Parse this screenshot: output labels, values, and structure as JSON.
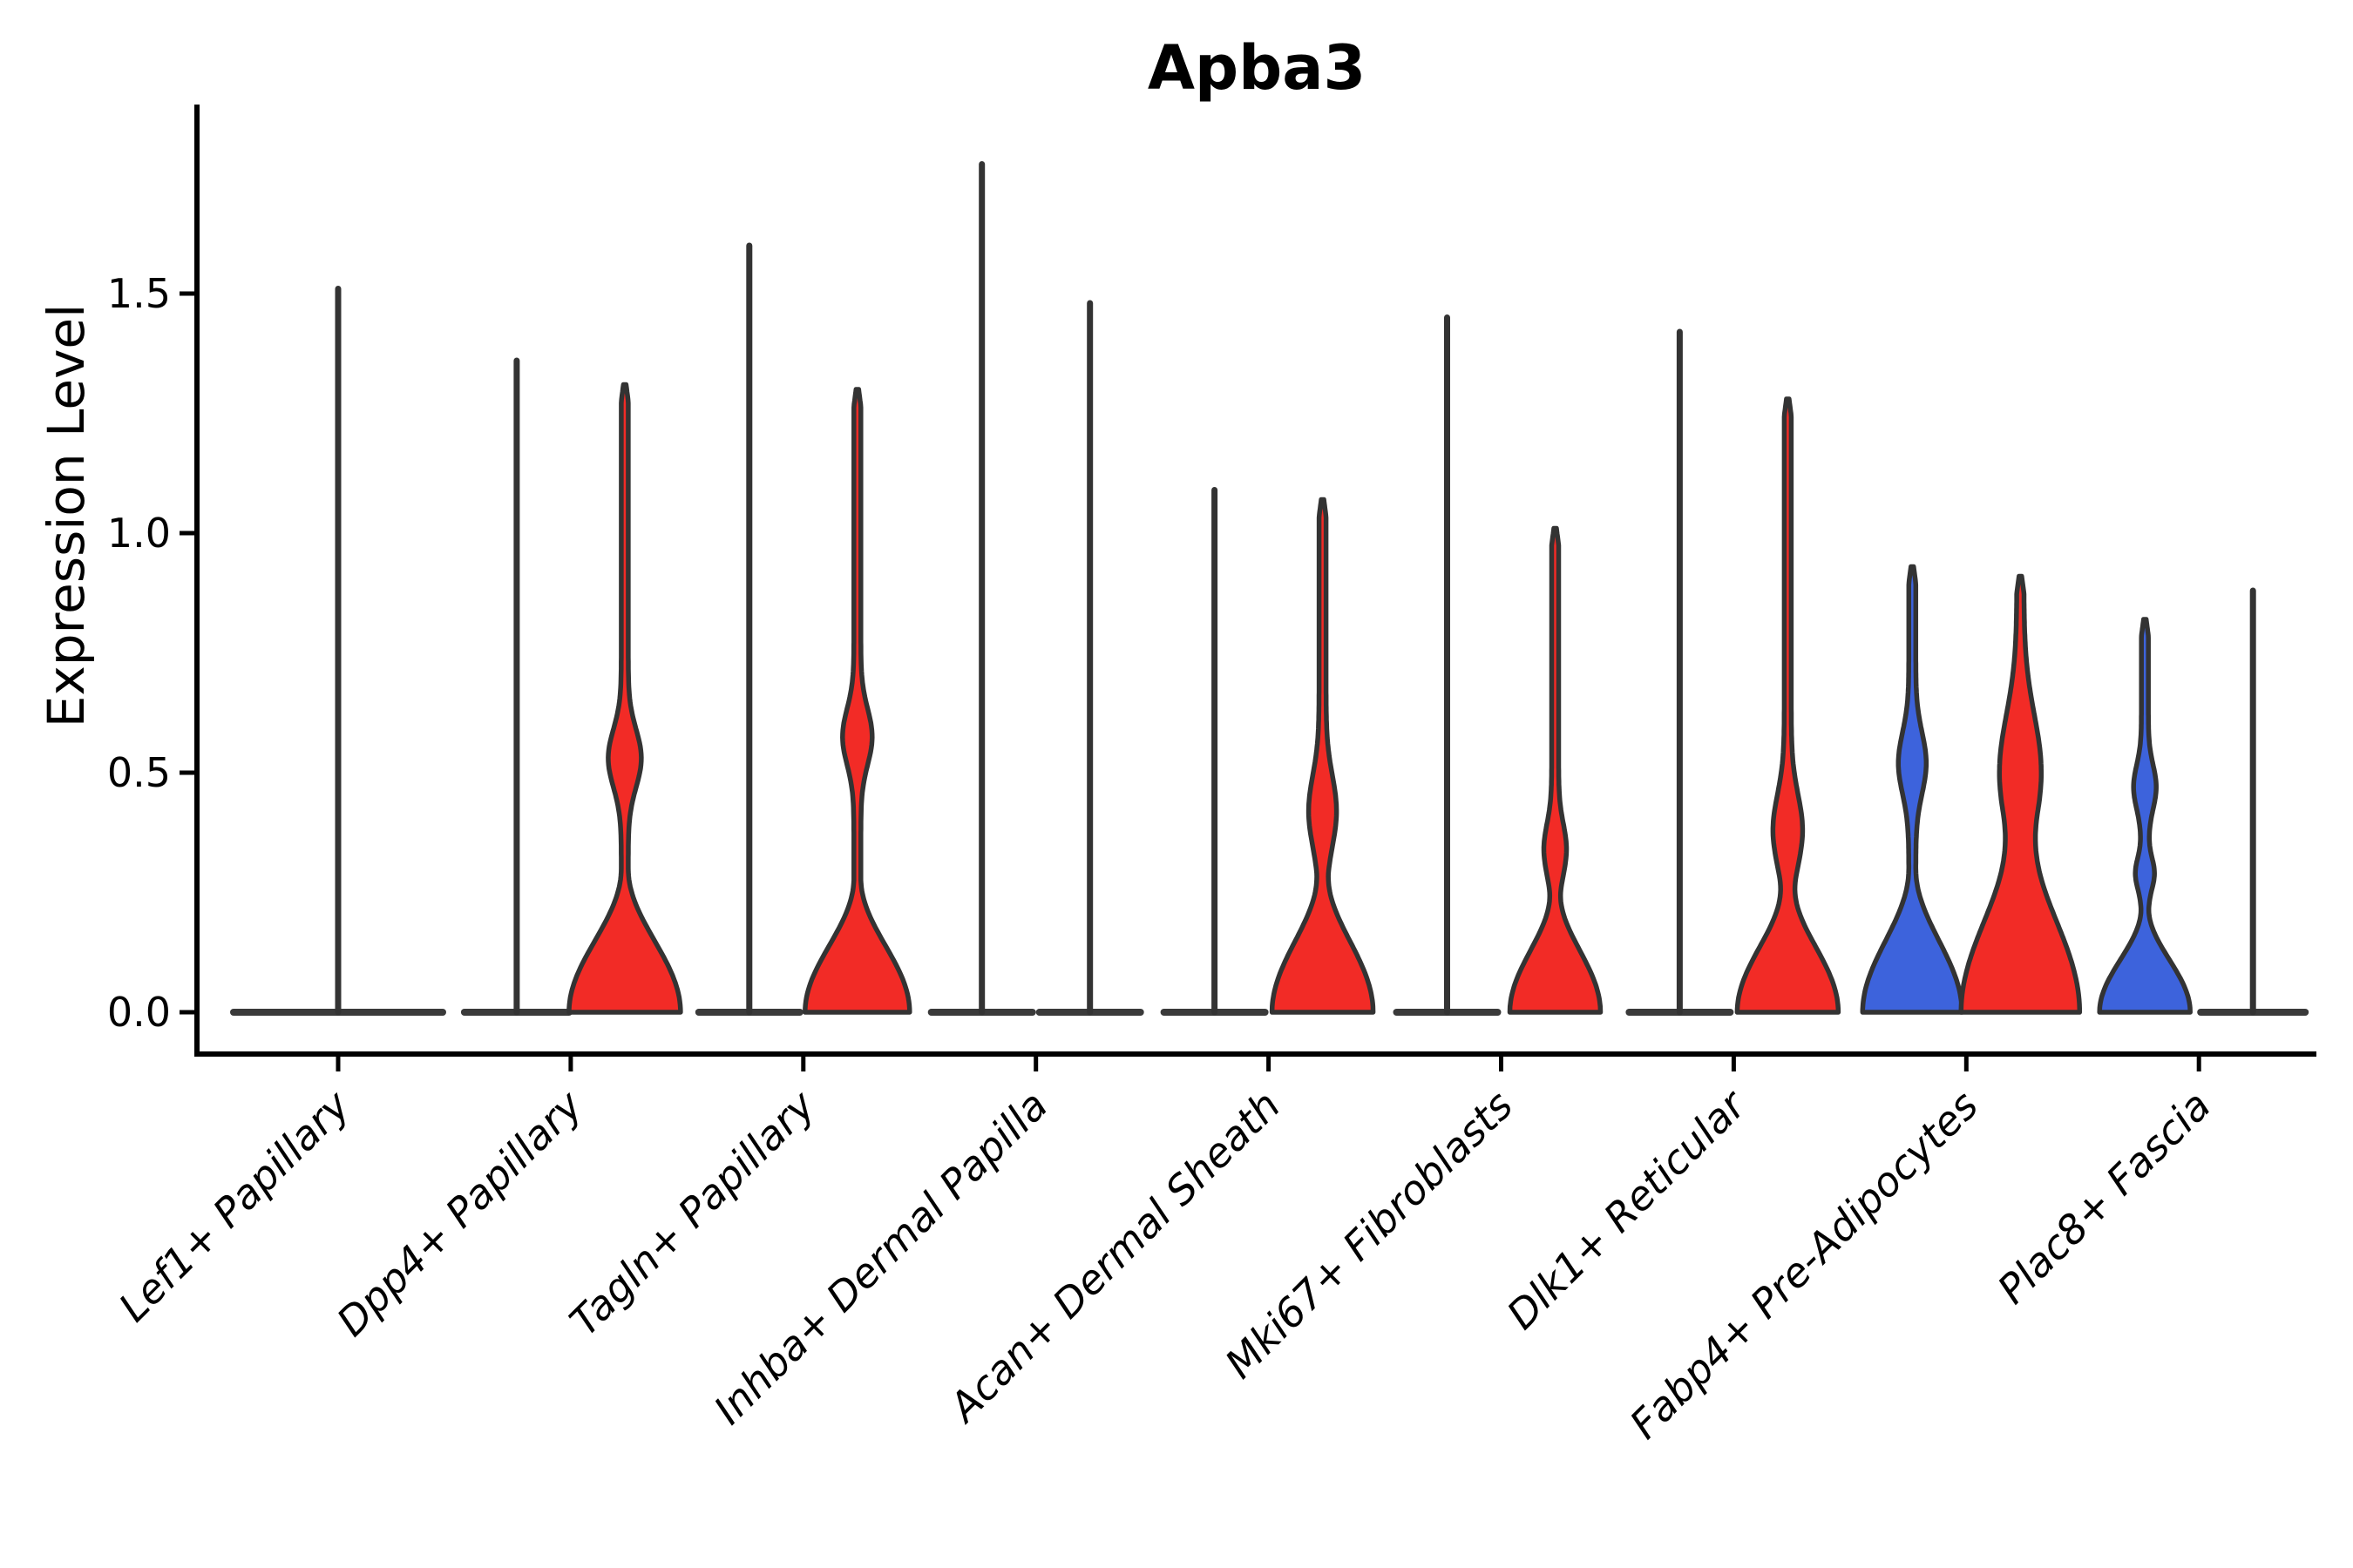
{
  "title": "Apba3",
  "ylabel": "Expression Level",
  "chart_data": {
    "type": "violin",
    "title": "Apba3",
    "xlabel": "",
    "ylabel": "Expression Level",
    "ylim": [
      0,
      1.89
    ],
    "yticks": [
      0.0,
      0.5,
      1.0,
      1.5
    ],
    "ytick_labels": [
      "0.0",
      "0.5",
      "1.0",
      "1.5"
    ],
    "grid": false,
    "legend": "none",
    "colors": {
      "red_fill": "#f22b26",
      "blue_fill": "#3d63dc",
      "violin_outline": "#333333",
      "axis": "#000000",
      "background": "#ffffff"
    },
    "categories": [
      {
        "label": "Lef1+ Papillary",
        "violins": [
          {
            "group": "all",
            "fill": "none",
            "max_expression": 1.51,
            "base_halfwidth": 120,
            "shape": "flat-with-spike"
          }
        ]
      },
      {
        "label": "Dpp4+ Papillary",
        "violins": [
          {
            "group": "left",
            "fill": "none",
            "max_expression": 1.36,
            "base_halfwidth": 60,
            "shape": "flat-with-spike"
          },
          {
            "group": "right",
            "fill": "red",
            "max_expression": 1.31,
            "base_halfwidth": 60,
            "blob_top": 0.3,
            "bulge_center": 0.53,
            "bulge_halfwidth": 15,
            "bulge_spread": 0.085,
            "shape": "filled"
          }
        ]
      },
      {
        "label": "Tagln+ Papillary",
        "violins": [
          {
            "group": "left",
            "fill": "none",
            "max_expression": 1.6,
            "base_halfwidth": 58,
            "shape": "flat-with-spike"
          },
          {
            "group": "right",
            "fill": "red",
            "max_expression": 1.3,
            "base_halfwidth": 56,
            "blob_top": 0.28,
            "bulge_center": 0.575,
            "bulge_halfwidth": 13,
            "bulge_spread": 0.082,
            "shape": "filled"
          }
        ]
      },
      {
        "label": "Inhba+ Dermal Papilla",
        "violins": [
          {
            "group": "left",
            "fill": "none",
            "max_expression": 1.77,
            "base_halfwidth": 58,
            "shape": "flat-with-spike"
          },
          {
            "group": "right",
            "fill": "none",
            "max_expression": 1.48,
            "base_halfwidth": 58,
            "shape": "flat-with-spike"
          }
        ]
      },
      {
        "label": "Acan+ Dermal Sheath",
        "violins": [
          {
            "group": "left",
            "fill": "none",
            "max_expression": 1.09,
            "base_halfwidth": 58,
            "shape": "flat-with-spike"
          },
          {
            "group": "right",
            "fill": "red",
            "max_expression": 1.07,
            "base_halfwidth": 54,
            "blob_top": 0.3,
            "bulge_center": 0.42,
            "bulge_halfwidth": 12,
            "bulge_spread": 0.105,
            "shape": "filled"
          }
        ]
      },
      {
        "label": "Mki67+ Fibroblasts",
        "violins": [
          {
            "group": "left",
            "fill": "none",
            "max_expression": 1.45,
            "base_halfwidth": 58,
            "shape": "flat-with-spike"
          },
          {
            "group": "right",
            "fill": "red",
            "max_expression": 1.01,
            "base_halfwidth": 48,
            "blob_top": 0.26,
            "bulge_center": 0.34,
            "bulge_halfwidth": 9,
            "bulge_spread": 0.075,
            "shape": "filled"
          }
        ]
      },
      {
        "label": "Dlk1+ Reticular",
        "violins": [
          {
            "group": "left",
            "fill": "none",
            "max_expression": 1.42,
            "base_halfwidth": 58,
            "shape": "flat-with-spike"
          },
          {
            "group": "right",
            "fill": "red",
            "max_expression": 1.28,
            "base_halfwidth": 54,
            "blob_top": 0.28,
            "bulge_center": 0.38,
            "bulge_halfwidth": 13,
            "bulge_spread": 0.105,
            "shape": "filled"
          }
        ]
      },
      {
        "label": "Fabp4+ Pre-Adipocytes",
        "violins": [
          {
            "group": "left",
            "fill": "blue",
            "max_expression": 0.93,
            "base_halfwidth": 53,
            "blob_top": 0.3,
            "bulge_center": 0.52,
            "bulge_halfwidth": 12,
            "bulge_spread": 0.09,
            "shape": "filled"
          },
          {
            "group": "right",
            "fill": "red",
            "max_expression": 0.91,
            "base_halfwidth": 64,
            "blob_top": 0.42,
            "bulge_center": 0.5,
            "bulge_halfwidth": 20,
            "bulge_spread": 0.17,
            "shape": "filled"
          }
        ]
      },
      {
        "label": "Plac8+ Fascia",
        "violins": [
          {
            "group": "left",
            "fill": "blue",
            "max_expression": 0.82,
            "base_halfwidth": 48,
            "blob_top": 0.22,
            "bulge_center": 0.47,
            "bulge_halfwidth": 9,
            "bulge_spread": 0.065,
            "bulge2_center": 0.29,
            "bulge2_halfwidth": 7,
            "bulge2_spread": 0.045,
            "shape": "filled"
          },
          {
            "group": "right",
            "fill": "none",
            "max_expression": 0.88,
            "base_halfwidth": 60,
            "shape": "flat-with-spike"
          }
        ]
      }
    ]
  }
}
